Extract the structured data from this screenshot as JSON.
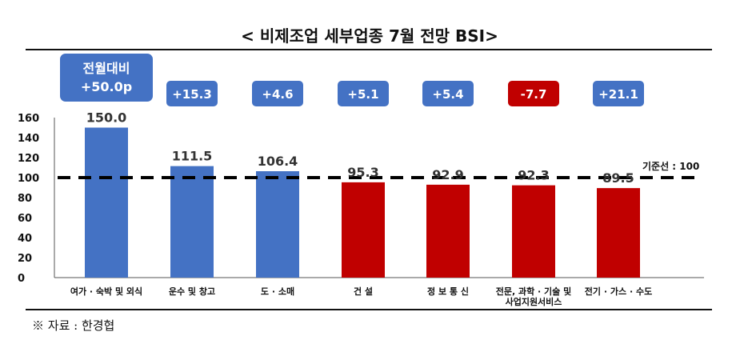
{
  "chart_data": {
    "type": "bar",
    "title": "< 비제조업 세부업종 7월 전망 BSI>",
    "categories": [
      "여가 · 숙박 및 외식",
      "운수 및 창고",
      "도 · 소매",
      "건 설",
      "정 보 통 신",
      [
        "전문, 과학 · 기술 및",
        "사업지원서비스"
      ],
      "전기 · 가스 · 수도"
    ],
    "values": [
      150.0,
      111.5,
      106.4,
      95.3,
      92.9,
      92.3,
      89.5
    ],
    "value_labels": [
      "150.0",
      "111.5",
      "106.4",
      "95.3",
      "92.9",
      "92.3",
      "89.5"
    ],
    "changes": [
      "+50.0p",
      "+15.3",
      "+4.6",
      "+5.1",
      "+5.4",
      "-7.7",
      "+21.1"
    ],
    "change_header": "전월대비",
    "bar_colors": [
      "#4472C4",
      "#4472C4",
      "#4472C4",
      "#C00000",
      "#C00000",
      "#C00000",
      "#C00000"
    ],
    "change_colors": [
      "#4472C4",
      "#4472C4",
      "#4472C4",
      "#4472C4",
      "#4472C4",
      "#C00000",
      "#4472C4"
    ],
    "baseline": {
      "value": 100,
      "label": "기준선 : 100"
    },
    "ylim": [
      0,
      160
    ],
    "yticks": [
      0,
      20,
      40,
      60,
      80,
      100,
      120,
      140,
      160
    ],
    "grid": false
  },
  "source": "※ 자료 : 한경협"
}
